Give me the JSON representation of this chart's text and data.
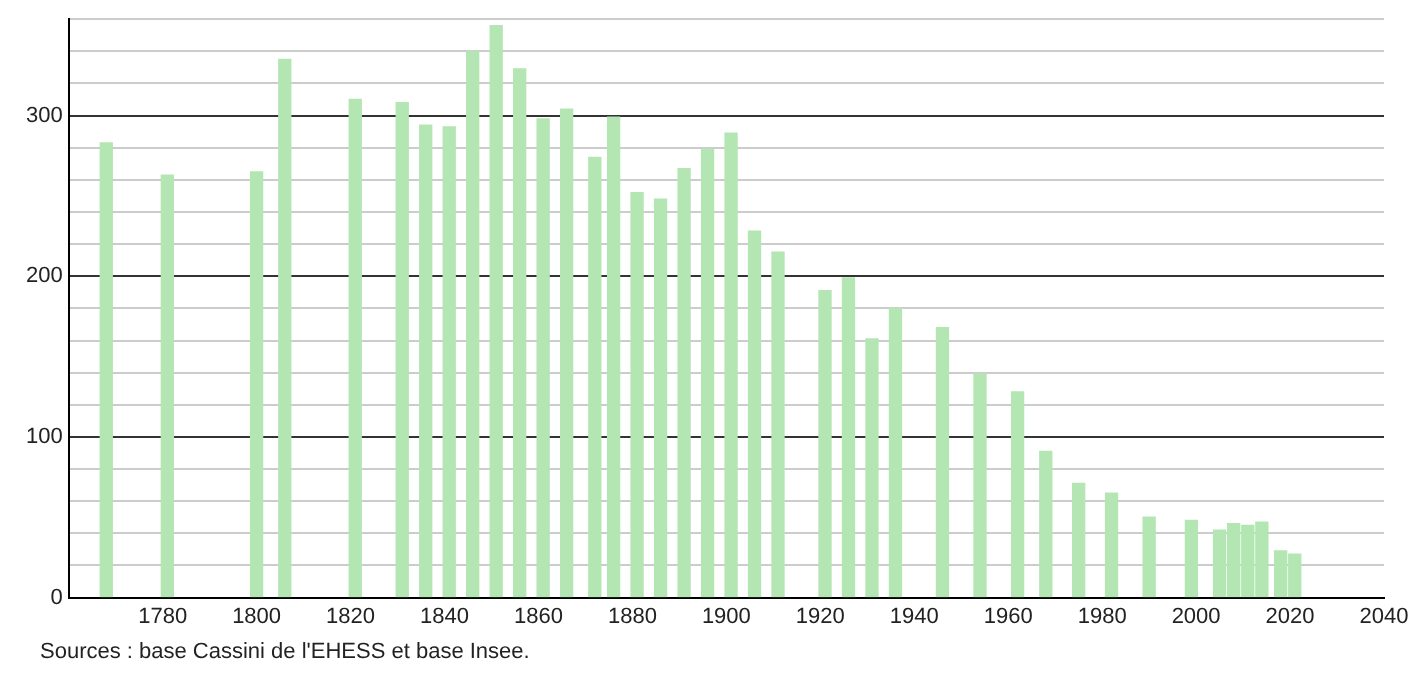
{
  "chart_data": {
    "type": "bar",
    "x": [
      1768,
      1781,
      1800,
      1806,
      1821,
      1831,
      1836,
      1841,
      1846,
      1851,
      1856,
      1861,
      1866,
      1872,
      1876,
      1881,
      1886,
      1891,
      1896,
      1901,
      1906,
      1911,
      1921,
      1926,
      1931,
      1936,
      1946,
      1954,
      1962,
      1968,
      1975,
      1982,
      1990,
      1999,
      2005,
      2008,
      2011,
      2014,
      2018,
      2021
    ],
    "values": [
      283,
      263,
      265,
      335,
      310,
      308,
      294,
      293,
      340,
      356,
      329,
      298,
      304,
      274,
      299,
      252,
      248,
      267,
      279,
      289,
      228,
      215,
      191,
      199,
      161,
      180,
      168,
      139,
      128,
      91,
      71,
      65,
      50,
      48,
      42,
      46,
      45,
      47,
      29,
      27
    ],
    "color": "#b3e6b3",
    "xlim": [
      1760,
      2040
    ],
    "xticks": [
      1780,
      1800,
      1820,
      1840,
      1860,
      1880,
      1900,
      1920,
      1940,
      1960,
      1980,
      2000,
      2020,
      2040
    ],
    "ylim": [
      0,
      360
    ],
    "yticks": [
      0,
      {
        "value": 20,
        "label": null
      },
      {
        "value": 40,
        "label": null
      },
      {
        "value": 60,
        "label": null
      },
      {
        "value": 80,
        "label": null
      },
      100,
      {
        "value": 120,
        "label": null
      },
      {
        "value": 140,
        "label": null
      },
      {
        "value": 160,
        "label": null
      },
      {
        "value": 180,
        "label": null
      },
      200,
      {
        "value": 220,
        "label": null
      },
      {
        "value": 240,
        "label": null
      },
      {
        "value": 260,
        "label": null
      },
      {
        "value": 280,
        "label": null
      },
      300,
      {
        "value": 320,
        "label": null
      },
      {
        "value": 340,
        "label": null
      },
      {
        "value": 360,
        "label": null
      }
    ],
    "grid": "y",
    "annotations": [
      "Sources : base Cassini de l'EHESS et base Insee."
    ]
  }
}
